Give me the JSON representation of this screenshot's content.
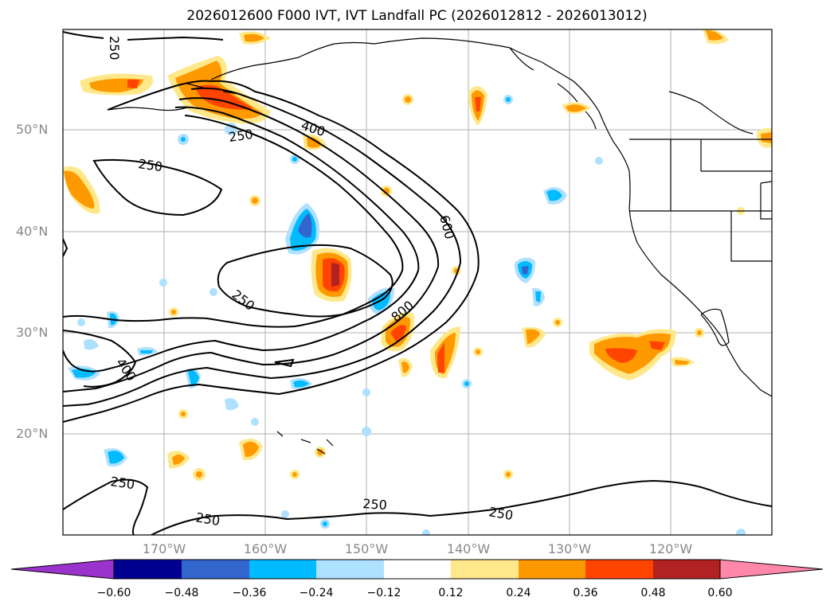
{
  "title": "2026012600 F000 IVT, IVT Landfall PC (2026012812 - 2026013012)",
  "lat_labels": [
    "50°N",
    "40°N",
    "30°N",
    "20°N"
  ],
  "lon_labels": [
    "170°W",
    "160°W",
    "150°W",
    "140°W",
    "130°W",
    "120°W"
  ],
  "contour_labels": [
    "250",
    "250",
    "400",
    "250",
    "600",
    "250",
    "800",
    "400",
    "250",
    "250",
    "250",
    "250"
  ],
  "colorbar": {
    "ticks": [
      "−0.60",
      "−0.48",
      "−0.36",
      "−0.24",
      "−0.12",
      "0.12",
      "0.24",
      "0.36",
      "0.48",
      "0.60"
    ],
    "colors": [
      "#9933cc",
      "#000090",
      "#3366cc",
      "#00bbff",
      "#aee0ff",
      "#ffffff",
      "#ffe88a",
      "#ff9900",
      "#ff4400",
      "#b22222",
      "#ff88aa"
    ]
  }
}
